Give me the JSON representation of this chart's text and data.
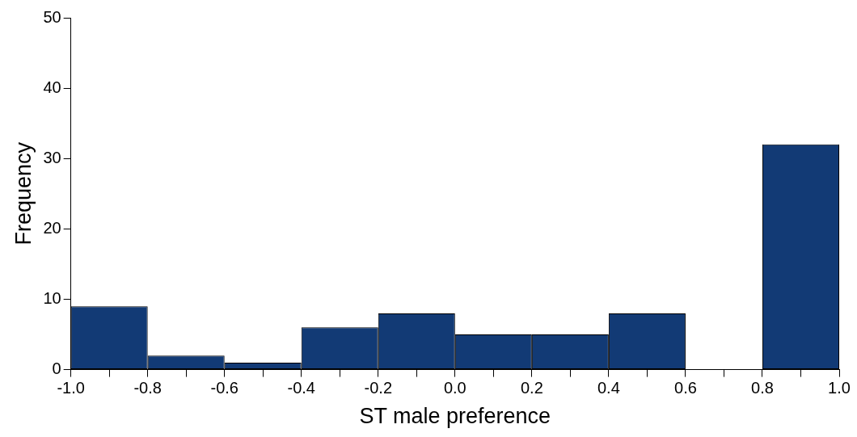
{
  "chart_data": {
    "type": "histogram",
    "xlabel": "ST male preference",
    "ylabel": "Frequency",
    "bins": [
      -1.0,
      -0.8,
      -0.6,
      -0.4,
      -0.2,
      0.0,
      0.2,
      0.4,
      0.6,
      0.8,
      1.0
    ],
    "values": [
      9,
      2,
      1,
      6,
      8,
      5,
      5,
      8,
      0,
      32
    ],
    "color": "#123a75",
    "xlim": [
      -1.0,
      1.0
    ],
    "xticks": [
      {
        "value": -1.0,
        "label": "-1.0"
      },
      {
        "value": -0.9,
        "label": null
      },
      {
        "value": -0.8,
        "label": "-0.8"
      },
      {
        "value": -0.7,
        "label": null
      },
      {
        "value": -0.6,
        "label": "-0.6"
      },
      {
        "value": -0.5,
        "label": null
      },
      {
        "value": -0.4,
        "label": "-0.4"
      },
      {
        "value": -0.3,
        "label": null
      },
      {
        "value": -0.2,
        "label": "-0.2"
      },
      {
        "value": -0.1,
        "label": null
      },
      {
        "value": 0.0,
        "label": "0.0"
      },
      {
        "value": 0.1,
        "label": null
      },
      {
        "value": 0.2,
        "label": "0.2"
      },
      {
        "value": 0.3,
        "label": null
      },
      {
        "value": 0.4,
        "label": "0.4"
      },
      {
        "value": 0.5,
        "label": null
      },
      {
        "value": 0.6,
        "label": "0.6"
      },
      {
        "value": 0.7,
        "label": null
      },
      {
        "value": 0.8,
        "label": "0.8"
      },
      {
        "value": 0.9,
        "label": null
      },
      {
        "value": 1.0,
        "label": "1.0"
      }
    ],
    "ylim": [
      0,
      50
    ],
    "yticks": [
      0,
      10,
      20,
      30,
      40,
      50
    ],
    "grid": false,
    "legend": false
  }
}
